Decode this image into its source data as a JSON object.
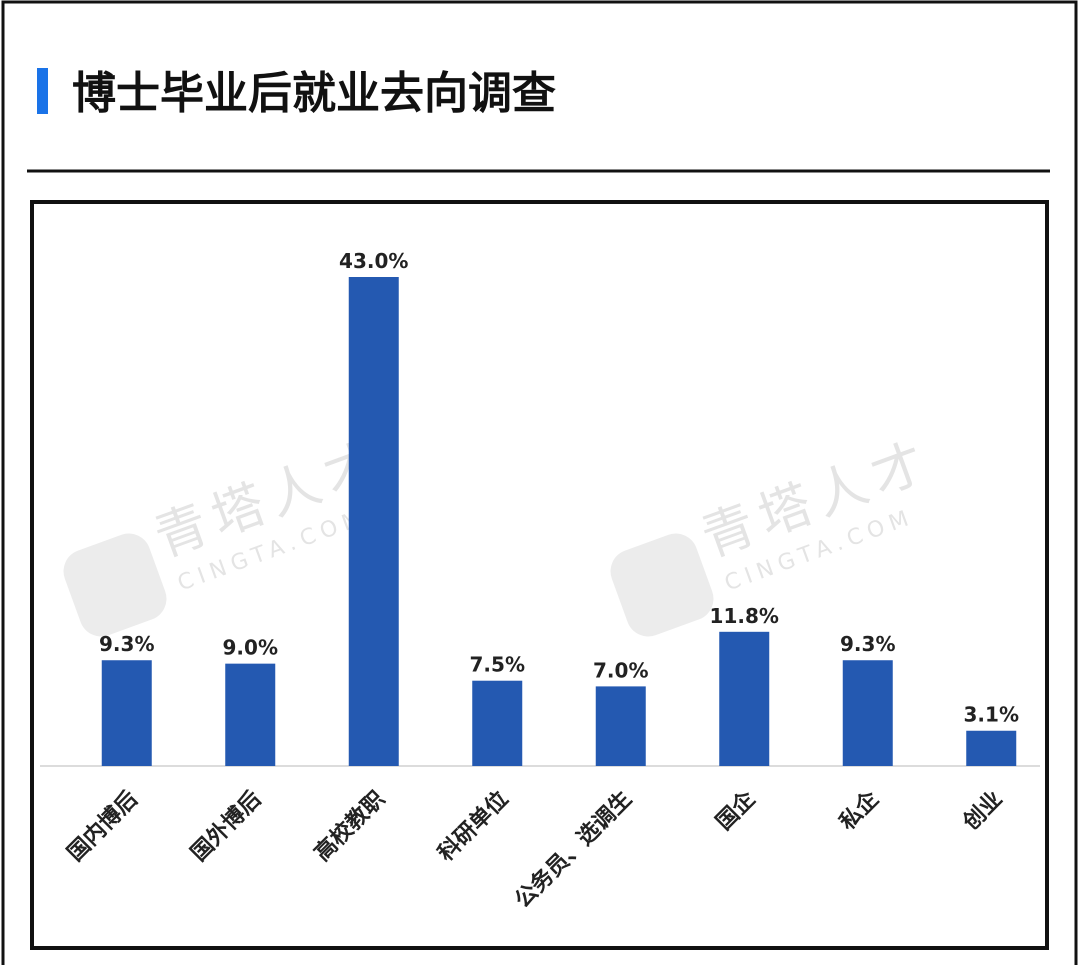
{
  "chart_data": {
    "type": "bar",
    "title": "博士毕业后就业去向调查",
    "categories": [
      "国内博后",
      "国外博后",
      "高校教职",
      "科研单位",
      "公务员、选调生",
      "国企",
      "私企",
      "创业"
    ],
    "values": [
      9.3,
      9.0,
      43.0,
      7.5,
      7.0,
      11.8,
      9.3,
      3.1
    ],
    "value_labels": [
      "9.3%",
      "9.0%",
      "43.0%",
      "7.5%",
      "7.0%",
      "11.8%",
      "9.3%",
      "3.1%"
    ],
    "color": "#2459b1",
    "watermark": {
      "name": "青塔人才",
      "site": "CINGTA.COM"
    }
  }
}
